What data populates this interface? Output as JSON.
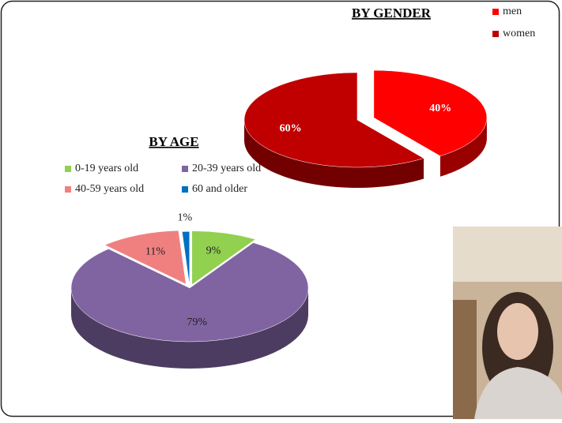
{
  "chart_data": [
    {
      "type": "pie",
      "title": "BY GENDER",
      "categories": [
        "men",
        "women"
      ],
      "values": [
        40,
        60
      ],
      "value_labels": [
        "40%",
        "60%"
      ],
      "colors": [
        "#ff0000",
        "#c00000"
      ]
    },
    {
      "type": "pie",
      "title": "BY AGE",
      "categories": [
        "0-19 years old",
        "20-39 years old",
        "40-59 years old",
        "60 and older"
      ],
      "values": [
        9,
        79,
        11,
        1
      ],
      "value_labels": [
        "9%",
        "79%",
        "11%",
        "1%"
      ],
      "colors": [
        "#92d050",
        "#8064a2",
        "#f08080",
        "#0070c0"
      ]
    }
  ]
}
